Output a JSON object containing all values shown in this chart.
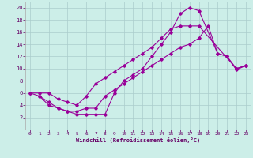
{
  "xlabel": "Windchill (Refroidissement éolien,°C)",
  "bg_color": "#cceee8",
  "grid_color": "#aacccc",
  "line_color": "#990099",
  "xlim": [
    -0.5,
    23.5
  ],
  "ylim": [
    0,
    21
  ],
  "xticks": [
    0,
    1,
    2,
    3,
    4,
    5,
    6,
    7,
    8,
    9,
    10,
    11,
    12,
    13,
    14,
    15,
    16,
    17,
    18,
    19,
    20,
    21,
    22,
    23
  ],
  "yticks": [
    2,
    4,
    6,
    8,
    10,
    12,
    14,
    16,
    18,
    20
  ],
  "series1_x": [
    0,
    1,
    2,
    3,
    4,
    5,
    6,
    7,
    8,
    9,
    10,
    11,
    12,
    13,
    14,
    15,
    16,
    17,
    18,
    22,
    23
  ],
  "series1_y": [
    6,
    6,
    6,
    5,
    4.5,
    4,
    5.5,
    7.5,
    8.5,
    9.5,
    10.5,
    11.5,
    12.5,
    13.5,
    15,
    16.5,
    17,
    17,
    17,
    10,
    10.5
  ],
  "series2_x": [
    1,
    2,
    3,
    4,
    5,
    6,
    7,
    8,
    9,
    10,
    11,
    12,
    13,
    14,
    15,
    16,
    17,
    18,
    20,
    21,
    22,
    23
  ],
  "series2_y": [
    5.5,
    4.5,
    3.5,
    3,
    2.5,
    2.5,
    2.5,
    2.5,
    6,
    8,
    9,
    10,
    12,
    14,
    16,
    19,
    20,
    19.5,
    12.5,
    12,
    10,
    10.5
  ],
  "series3_x": [
    0,
    1,
    2,
    3,
    4,
    5,
    6,
    7,
    8,
    9,
    10,
    11,
    12,
    13,
    14,
    15,
    16,
    17,
    18,
    19,
    20,
    21,
    22,
    23
  ],
  "series3_y": [
    6,
    5.5,
    4,
    3.5,
    3,
    3,
    3.5,
    3.5,
    5.5,
    6.5,
    7.5,
    8.5,
    9.5,
    10.5,
    11.5,
    12.5,
    13.5,
    14,
    15,
    17,
    12.5,
    12,
    9.8,
    10.5
  ]
}
